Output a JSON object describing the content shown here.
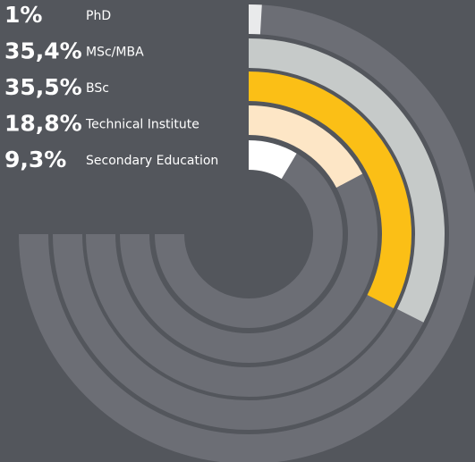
{
  "chart_data": {
    "type": "radial-bar",
    "categories": [
      "PhD",
      "MSc/MBA",
      "BSc",
      "Technical Institute",
      "Secondary Education"
    ],
    "values": [
      1,
      35.4,
      35.5,
      18.8,
      9.3
    ],
    "value_labels": [
      "1%",
      "35,4%",
      "35,5%",
      "18,8%",
      "9,3%"
    ],
    "colors": [
      "#e9eaeb",
      "#c6cac9",
      "#fbbf16",
      "#fde6c6",
      "#ffffff"
    ],
    "ylim": [
      0,
      100
    ]
  }
}
